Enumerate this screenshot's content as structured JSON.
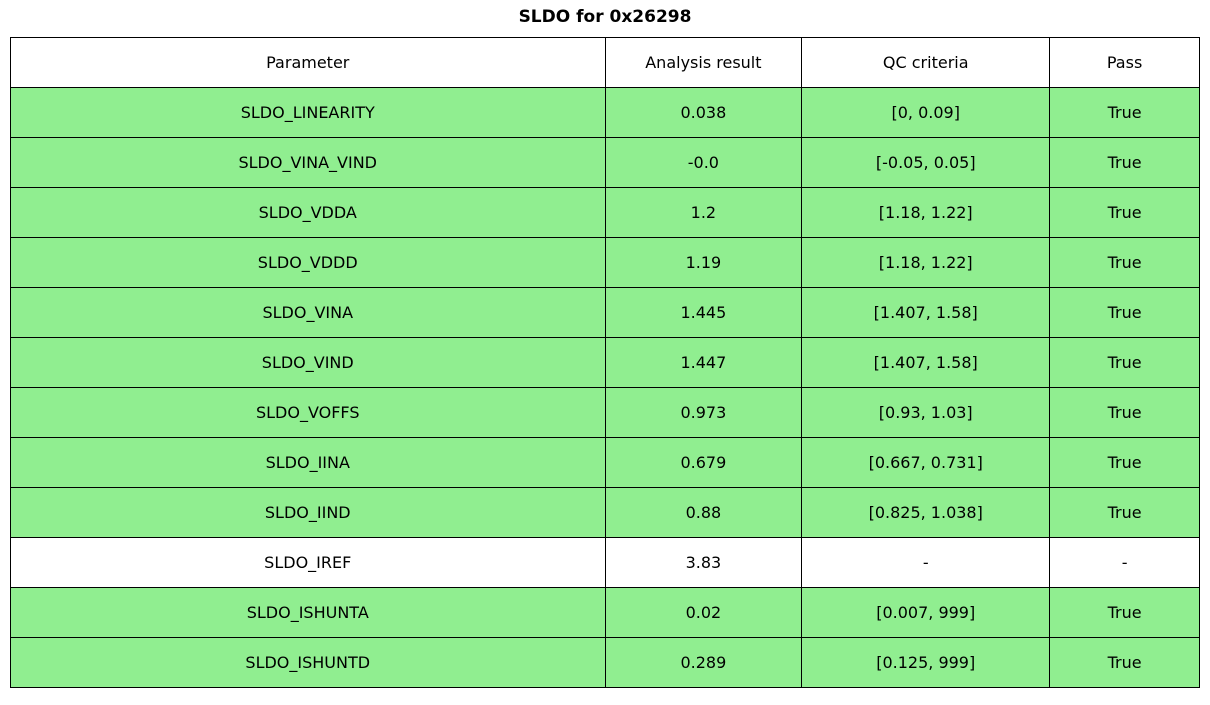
{
  "title": "SLDO for 0x26298",
  "colors": {
    "pass_row": "#90ee90",
    "neutral_row": "#ffffff",
    "border": "#000000"
  },
  "chart_data": {
    "type": "table",
    "title": "SLDO for 0x26298",
    "columns": [
      "Parameter",
      "Analysis result",
      "QC criteria",
      "Pass"
    ],
    "rows": [
      {
        "parameter": "SLDO_LINEARITY",
        "analysis_result": "0.038",
        "qc_criteria": "[0, 0.09]",
        "pass": "True"
      },
      {
        "parameter": "SLDO_VINA_VIND",
        "analysis_result": "-0.0",
        "qc_criteria": "[-0.05, 0.05]",
        "pass": "True"
      },
      {
        "parameter": "SLDO_VDDA",
        "analysis_result": "1.2",
        "qc_criteria": "[1.18, 1.22]",
        "pass": "True"
      },
      {
        "parameter": "SLDO_VDDD",
        "analysis_result": "1.19",
        "qc_criteria": "[1.18, 1.22]",
        "pass": "True"
      },
      {
        "parameter": "SLDO_VINA",
        "analysis_result": "1.445",
        "qc_criteria": "[1.407, 1.58]",
        "pass": "True"
      },
      {
        "parameter": "SLDO_VIND",
        "analysis_result": "1.447",
        "qc_criteria": "[1.407, 1.58]",
        "pass": "True"
      },
      {
        "parameter": "SLDO_VOFFS",
        "analysis_result": "0.973",
        "qc_criteria": "[0.93, 1.03]",
        "pass": "True"
      },
      {
        "parameter": "SLDO_IINA",
        "analysis_result": "0.679",
        "qc_criteria": "[0.667, 0.731]",
        "pass": "True"
      },
      {
        "parameter": "SLDO_IIND",
        "analysis_result": "0.88",
        "qc_criteria": "[0.825, 1.038]",
        "pass": "True"
      },
      {
        "parameter": "SLDO_IREF",
        "analysis_result": "3.83",
        "qc_criteria": "-",
        "pass": "-"
      },
      {
        "parameter": "SLDO_ISHUNTA",
        "analysis_result": "0.02",
        "qc_criteria": "[0.007, 999]",
        "pass": "True"
      },
      {
        "parameter": "SLDO_ISHUNTD",
        "analysis_result": "0.289",
        "qc_criteria": "[0.125, 999]",
        "pass": "True"
      }
    ]
  }
}
